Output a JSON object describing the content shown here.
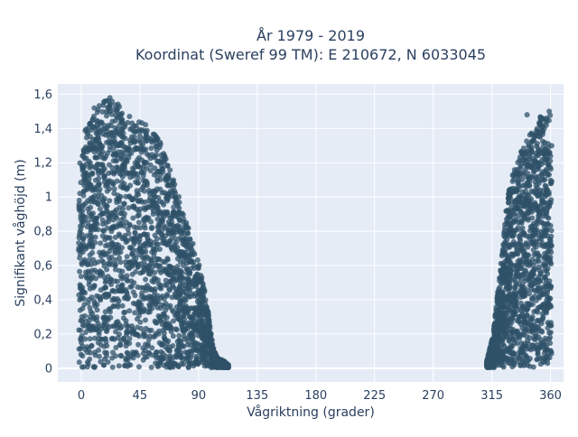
{
  "chart_data": {
    "type": "scatter",
    "title_line1": "År 1979 - 2019",
    "title_line2": "Koordinat (Sweref 99 TM): E 210672, N 6033045",
    "xlabel": "Vågriktning (grader)",
    "ylabel": "Signifikant våghöjd (m)",
    "xlim": [
      -18,
      370
    ],
    "ylim": [
      -0.08,
      1.66
    ],
    "xticks": [
      0,
      45,
      90,
      135,
      180,
      225,
      270,
      315,
      360
    ],
    "xtick_labels": [
      "0",
      "45",
      "90",
      "135",
      "180",
      "225",
      "270",
      "315",
      "360"
    ],
    "yticks": [
      0,
      0.2,
      0.4,
      0.6,
      0.8,
      1.0,
      1.2,
      1.4,
      1.6
    ],
    "ytick_labels": [
      "0",
      "0,2",
      "0,4",
      "0,6",
      "0,8",
      "1",
      "1,2",
      "1,4",
      "1,6"
    ],
    "grid": true,
    "legend": false,
    "marker_color": "#2f5168",
    "background_color": "#e5ecf6",
    "series": [
      {
        "envelope_upper": [
          [
            -2,
            1.38
          ],
          [
            0,
            1.32
          ],
          [
            5,
            1.45
          ],
          [
            10,
            1.5
          ],
          [
            15,
            1.55
          ],
          [
            22,
            1.58
          ],
          [
            28,
            1.55
          ],
          [
            33,
            1.48
          ],
          [
            38,
            1.45
          ],
          [
            45,
            1.47
          ],
          [
            50,
            1.42
          ],
          [
            55,
            1.38
          ],
          [
            60,
            1.33
          ],
          [
            65,
            1.25
          ],
          [
            70,
            1.12
          ],
          [
            75,
            1.0
          ],
          [
            80,
            0.87
          ],
          [
            85,
            0.75
          ],
          [
            88,
            0.66
          ],
          [
            90,
            0.62
          ],
          [
            92,
            0.55
          ],
          [
            95,
            0.45
          ],
          [
            98,
            0.3
          ],
          [
            100,
            0.18
          ],
          [
            102,
            0.1
          ],
          [
            105,
            0.06
          ],
          [
            110,
            0.04
          ],
          [
            113,
            0.02
          ]
        ],
        "envelope_upper_east": [
          [
            311,
            0.04
          ],
          [
            313,
            0.1
          ],
          [
            316,
            0.2
          ],
          [
            318,
            0.35
          ],
          [
            321,
            0.55
          ],
          [
            323,
            0.7
          ],
          [
            325,
            0.85
          ],
          [
            327,
            1.0
          ],
          [
            330,
            1.1
          ],
          [
            333,
            1.2
          ],
          [
            336,
            1.25
          ],
          [
            340,
            1.3
          ],
          [
            344,
            1.38
          ],
          [
            348,
            1.4
          ],
          [
            352,
            1.48
          ],
          [
            356,
            1.45
          ],
          [
            358,
            1.48
          ],
          [
            360,
            1.5
          ],
          [
            361,
            1.3
          ]
        ],
        "outliers": [
          [
            10,
            1.52
          ],
          [
            13,
            1.51
          ],
          [
            18,
            1.56
          ],
          [
            22,
            1.58
          ],
          [
            31,
            1.45
          ],
          [
            37,
            1.47
          ],
          [
            342,
            1.48
          ],
          [
            357,
            1.46
          ],
          [
            359,
            1.5
          ],
          [
            325,
            0.84
          ],
          [
            331,
            1.05
          ],
          [
            350,
            1.38
          ],
          [
            5,
            1.38
          ],
          [
            7,
            1.43
          ]
        ]
      }
    ]
  }
}
